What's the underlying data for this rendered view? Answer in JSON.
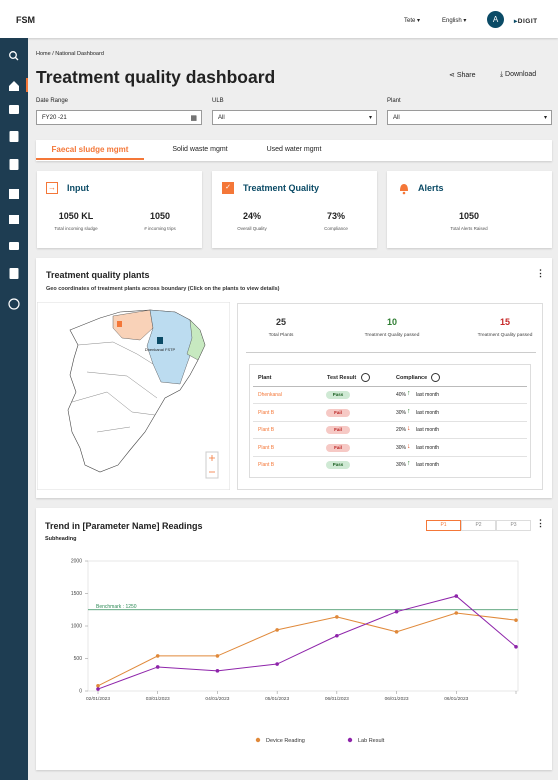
{
  "header": {
    "brand": "FSM",
    "city": "Tete",
    "language": "English",
    "avatar": "A",
    "logo": "DIGIT"
  },
  "breadcrumb": [
    "Home",
    "National Dashboard"
  ],
  "page": {
    "title": "Treatment quality dashboard",
    "actions": [
      "Share",
      "Download"
    ]
  },
  "filters": [
    {
      "label": "Date Range",
      "value": "FY20 -21"
    },
    {
      "label": "ULB",
      "value": "All"
    },
    {
      "label": "Plant",
      "value": "All"
    }
  ],
  "tabs": [
    "Faecal sludge mgmt",
    "Solid waste mgmt",
    "Used water mgmt"
  ],
  "cards": [
    {
      "title": "Input",
      "metrics": [
        {
          "value": "1050 KL",
          "label": "Total incoming sludge"
        },
        {
          "value": "1050",
          "label": "# incoming trips"
        }
      ]
    },
    {
      "title": "Treatment Quality",
      "metrics": [
        {
          "value": "24%",
          "label": "Overall Quality"
        },
        {
          "value": "73%",
          "label": "Compliance"
        }
      ]
    },
    {
      "title": "Alerts",
      "metrics": [
        {
          "value": "1050",
          "label": "Total Alerts Raised"
        }
      ]
    }
  ],
  "plants": {
    "title": "Treatment quality plants",
    "subtitle": "Geo coordinates of treatment plants across boundary (Click on the plants to view details)",
    "map_label": "Dhenkanal FSTP",
    "summary": [
      {
        "value": 25,
        "label": "Total Plants",
        "color": "#333333"
      },
      {
        "value": 10,
        "label": "Treatment Quality passed",
        "color": "#2e7d32"
      },
      {
        "value": 15,
        "label": "Treatment Quality passed",
        "color": "#c62828"
      }
    ],
    "table": {
      "headers": [
        "Plant",
        "Test Result",
        "Compliance"
      ],
      "rows": [
        {
          "plant": "Dhenkanal",
          "result": "Pass",
          "result_color": "pass",
          "compliance": "40%",
          "trend": "up",
          "period": "last month"
        },
        {
          "plant": "Plant B",
          "result": "Fail",
          "result_color": "fail",
          "compliance": "30%",
          "trend": "up",
          "period": "last month"
        },
        {
          "plant": "Plant B",
          "result": "Fail",
          "result_color": "fail",
          "compliance": "20%",
          "trend": "down",
          "period": "last month"
        },
        {
          "plant": "Plant B",
          "result": "Fail",
          "result_color": "fail",
          "compliance": "30%",
          "trend": "down",
          "period": "last month"
        },
        {
          "plant": "Plant B",
          "result": "Pass",
          "result_color": "pass",
          "compliance": "30%",
          "trend": "up",
          "period": "last month"
        }
      ]
    }
  },
  "trend_tabs": [
    "P1",
    "P2",
    "P3"
  ],
  "chart_data": {
    "type": "line",
    "title": "Trend in [Parameter Name] Readings",
    "subtitle": "Subheading",
    "categories": [
      "02/01/2023",
      "03/01/2023",
      "04/01/2023",
      "05/01/2023",
      "06/01/2023",
      "06/01/2023",
      "06/01/2023",
      null
    ],
    "series": [
      {
        "name": "Device Reading",
        "color": "#e0893a",
        "values": [
          80,
          540,
          540,
          940,
          1140,
          910,
          1200,
          1090
        ]
      },
      {
        "name": "Lab Result",
        "color": "#8e24aa",
        "values": [
          30,
          370,
          310,
          415,
          850,
          1220,
          1460,
          680
        ]
      }
    ],
    "ylim": [
      0,
      2000
    ],
    "yticks": [
      0,
      500,
      1000,
      1500,
      2000
    ],
    "benchmark": {
      "value": 1250,
      "label": "Benchmark : 1250",
      "color": "#2e8b57"
    },
    "grid": false,
    "legend": "bottom"
  }
}
